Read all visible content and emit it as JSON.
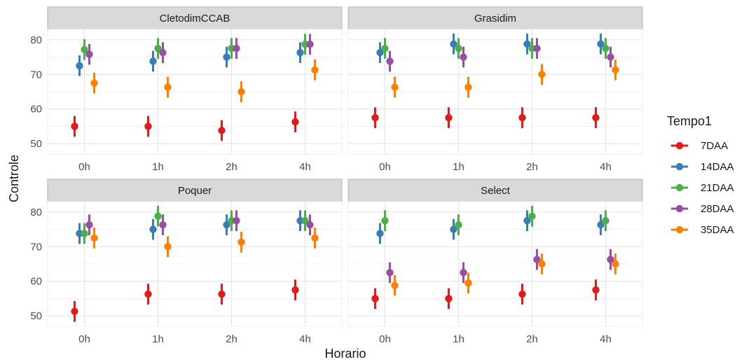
{
  "chart_data": {
    "type": "scatter",
    "subtype": "pointrange-facets",
    "xlabel": "Horario",
    "ylabel": "Controle",
    "categories": [
      "0h",
      "1h",
      "2h",
      "4h"
    ],
    "ylim": [
      47,
      83
    ],
    "yticks": [
      50,
      60,
      70,
      80
    ],
    "grid": true,
    "legend": {
      "title": "Tempo1",
      "position": "right",
      "entries": [
        {
          "name": "7DAA",
          "color": "#e31a1c"
        },
        {
          "name": "14DAA",
          "color": "#377eb8"
        },
        {
          "name": "21DAA",
          "color": "#4daf4a"
        },
        {
          "name": "28DAA",
          "color": "#984ea3"
        },
        {
          "name": "35DAA",
          "color": "#ff7f00"
        }
      ]
    },
    "error_halfwidth": 3,
    "panels": [
      {
        "title": "CletodimCCAB",
        "series": [
          {
            "name": "7DAA",
            "values": [
              55,
              55,
              53.8,
              56.3
            ]
          },
          {
            "name": "14DAA",
            "values": [
              72.5,
              73.8,
              75,
              76.3
            ]
          },
          {
            "name": "21DAA",
            "values": [
              77.2,
              77.5,
              77.5,
              78.7
            ]
          },
          {
            "name": "28DAA",
            "values": [
              75.8,
              76.3,
              77.5,
              78.7
            ]
          },
          {
            "name": "35DAA",
            "values": [
              67.5,
              66.3,
              65,
              71.3
            ]
          }
        ]
      },
      {
        "title": "Grasidim",
        "series": [
          {
            "name": "7DAA",
            "values": [
              57.5,
              57.5,
              57.5,
              57.5
            ]
          },
          {
            "name": "14DAA",
            "values": [
              76.3,
              78.8,
              78.8,
              78.8
            ]
          },
          {
            "name": "21DAA",
            "values": [
              77.5,
              77.5,
              77.5,
              77.5
            ]
          },
          {
            "name": "28DAA",
            "values": [
              73.8,
              75,
              77.5,
              75
            ]
          },
          {
            "name": "35DAA",
            "values": [
              66.3,
              66.3,
              70,
              71.3
            ]
          }
        ]
      },
      {
        "title": "Poquer",
        "series": [
          {
            "name": "7DAA",
            "values": [
              51.3,
              56.3,
              56.3,
              57.5
            ]
          },
          {
            "name": "14DAA",
            "values": [
              73.8,
              75,
              76.3,
              77.5
            ]
          },
          {
            "name": "21DAA",
            "values": [
              73.8,
              78.8,
              77.5,
              77.5
            ]
          },
          {
            "name": "28DAA",
            "values": [
              76.3,
              76.3,
              77.5,
              76.3
            ]
          },
          {
            "name": "35DAA",
            "values": [
              72.5,
              70,
              71.3,
              72.5
            ]
          }
        ]
      },
      {
        "title": "Select",
        "series": [
          {
            "name": "7DAA",
            "values": [
              55,
              55,
              56.3,
              57.5
            ]
          },
          {
            "name": "14DAA",
            "values": [
              73.8,
              75,
              77.5,
              76.3
            ]
          },
          {
            "name": "21DAA",
            "values": [
              77.5,
              76.3,
              78.8,
              77.5
            ]
          },
          {
            "name": "28DAA",
            "values": [
              62.5,
              62.5,
              66.3,
              66.3
            ]
          },
          {
            "name": "35DAA",
            "values": [
              58.8,
              59.5,
              65,
              65
            ]
          }
        ]
      }
    ]
  }
}
